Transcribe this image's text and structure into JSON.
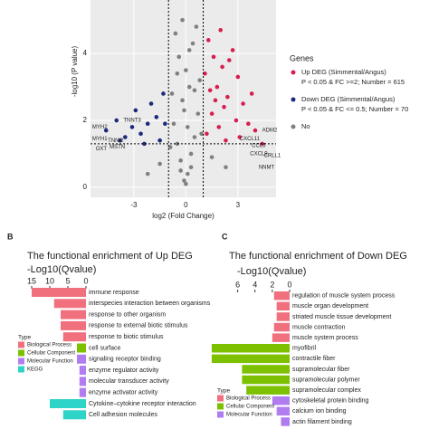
{
  "chart_data": [
    {
      "type": "scatter",
      "x_label": "log2 (Fold Change)",
      "y_label": "-log10 (P value)",
      "xlim": [
        -5.5,
        5.2
      ],
      "ylim": [
        -0.3,
        5.6
      ],
      "xticks": [
        -3,
        0,
        3
      ],
      "yticks": [
        0,
        2,
        4
      ],
      "vlines": [
        -1,
        1
      ],
      "hline": 1.3,
      "legend_title": "Genes",
      "series": [
        {
          "name": "Up DEG (Simmental/Angus)",
          "note": "P < 0.05 & FC >=2; Number = 615",
          "color": "#d61f4f",
          "x": [
            1.2,
            1.5,
            1.8,
            2.1,
            2.4,
            2.7,
            3.0,
            3.3,
            3.6,
            1.3,
            1.6,
            2.0,
            2.5,
            2.9,
            1.4,
            1.9,
            2.2,
            3.1,
            1.1,
            1.7,
            2.3,
            4.0,
            4.4,
            3.8
          ],
          "values": [
            1.6,
            2.2,
            3.0,
            3.6,
            2.7,
            4.1,
            3.3,
            2.5,
            1.9,
            4.4,
            3.9,
            4.7,
            3.8,
            2.0,
            2.9,
            1.8,
            2.4,
            1.5,
            3.4,
            2.6,
            1.4,
            1.7,
            1.3,
            2.8
          ]
        },
        {
          "name": "Down DEG (Simmental/Angus)",
          "note": "P < 0.05 & FC <= 0.5; Number = 70",
          "color": "#1c2a7a",
          "x": [
            -1.3,
            -1.7,
            -2.2,
            -2.6,
            -3.1,
            -3.5,
            -4.0,
            -4.6,
            -1.5,
            -2.0,
            -2.9,
            -3.8,
            -1.2,
            -2.4
          ],
          "values": [
            2.8,
            2.1,
            1.9,
            1.6,
            1.8,
            1.5,
            2.0,
            1.7,
            1.4,
            2.5,
            2.3,
            1.4,
            1.9,
            1.3
          ]
        },
        {
          "name": "No",
          "color": "#808080",
          "x": [
            -0.1,
            0.1,
            -0.3,
            0.3,
            -0.5,
            0.5,
            -0.7,
            0.7,
            -0.2,
            0.2,
            0.0,
            -0.4,
            0.4,
            -0.8,
            0.8,
            -0.6,
            0.6,
            -0.9,
            0.9,
            0.0,
            -0.3,
            0.3,
            0.1,
            -0.1,
            -1.5,
            1.5,
            -2.2,
            2.3,
            -0.5,
            0.5,
            0.2,
            -0.2
          ],
          "values": [
            0.2,
            0.4,
            0.8,
            1.0,
            1.3,
            1.5,
            1.9,
            2.2,
            2.6,
            3.0,
            3.5,
            3.9,
            4.3,
            2.8,
            3.2,
            4.6,
            4.8,
            1.2,
            1.6,
            0.1,
            0.5,
            0.6,
            1.8,
            2.3,
            0.7,
            0.9,
            0.4,
            0.6,
            3.4,
            2.9,
            4.1,
            5.0
          ]
        }
      ],
      "annotations": [
        {
          "text": "MYH2",
          "x": -5.4,
          "y": 1.8
        },
        {
          "text": "TNNT3",
          "x": -3.6,
          "y": 2.0
        },
        {
          "text": "MYH1",
          "x": -5.4,
          "y": 1.45
        },
        {
          "text": "TNNI2",
          "x": -4.5,
          "y": 1.4
        },
        {
          "text": "OXT",
          "x": -5.2,
          "y": 1.15
        },
        {
          "text": "MSTN",
          "x": -4.4,
          "y": 1.2
        },
        {
          "text": "CXCL11",
          "x": 3.1,
          "y": 1.45
        },
        {
          "text": "ADM2",
          "x": 4.4,
          "y": 1.7
        },
        {
          "text": "CCL5",
          "x": 3.8,
          "y": 1.25
        },
        {
          "text": "CXCL9",
          "x": 3.7,
          "y": 1.0
        },
        {
          "text": "CRLL1",
          "x": 4.5,
          "y": 0.95
        },
        {
          "text": "NNMT",
          "x": 4.2,
          "y": 0.6
        }
      ]
    },
    {
      "type": "barh",
      "panel": "B",
      "title": "The functional enrichment of Up DEG",
      "x_label": "-Log10(Qvalue)",
      "xlim": [
        15,
        0
      ],
      "xticks": [
        15,
        10,
        5,
        0
      ],
      "categories": [
        "immune response",
        "interspecies interaction between organisms",
        "response to other organism",
        "response to external biotic stimulus",
        "response to biotic stimulus",
        "cell surface",
        "signaling receptor binding",
        "enzyme regulator activity",
        "molecular transducer activity",
        "enzyme activator activity",
        "Cytokine–cytokine receptor interaction",
        "Cell adhesion molecules"
      ],
      "values": [
        15,
        8.8,
        7,
        7,
        6.3,
        2.5,
        2.5,
        1.8,
        1.8,
        1.8,
        10,
        6.3
      ],
      "types": [
        "Biological Process",
        "Biological Process",
        "Biological Process",
        "Biological Process",
        "Biological Process",
        "Cellular Component",
        "Molecular Function",
        "Molecular Function",
        "Molecular Function",
        "Molecular Function",
        "KEGG",
        "KEGG"
      ],
      "legend_title": "Type",
      "legend": [
        {
          "name": "Biological Process",
          "color": "#f0707e"
        },
        {
          "name": "Cellular Component",
          "color": "#7cc000"
        },
        {
          "name": "Molecular Function",
          "color": "#b07cf0"
        },
        {
          "name": "KEGG",
          "color": "#2fd4c8"
        }
      ]
    },
    {
      "type": "barh",
      "panel": "C",
      "title": "The functional enrichment of Down DEG",
      "x_label": "-Log10(Qvalue)",
      "xlim": [
        9.2,
        0
      ],
      "xticks": [
        6,
        4,
        2,
        0
      ],
      "categories": [
        "regulation of muscle system process",
        "muscle organ development",
        "striated muscle tissue development",
        "muscle contraction",
        "muscle system process",
        "myofibril",
        "contractile fiber",
        "supramolecular fiber",
        "supramolecular polymer",
        "supramolecular complex",
        "cytoskeletal protein binding",
        "calcium ion binding",
        "actin filament binding"
      ],
      "values": [
        1.8,
        1.5,
        1.5,
        1.8,
        2,
        9,
        9,
        5.5,
        5.5,
        5,
        2,
        1.5,
        1
      ],
      "types": [
        "Biological Process",
        "Biological Process",
        "Biological Process",
        "Biological Process",
        "Biological Process",
        "Cellular Component",
        "Cellular Component",
        "Cellular Component",
        "Cellular Component",
        "Cellular Component",
        "Molecular Function",
        "Molecular Function",
        "Molecular Function"
      ],
      "legend_title": "Type",
      "legend": [
        {
          "name": "Biological Process",
          "color": "#f0707e"
        },
        {
          "name": "Cellular Component",
          "color": "#7cc000"
        },
        {
          "name": "Molecular Function",
          "color": "#b07cf0"
        }
      ]
    }
  ]
}
